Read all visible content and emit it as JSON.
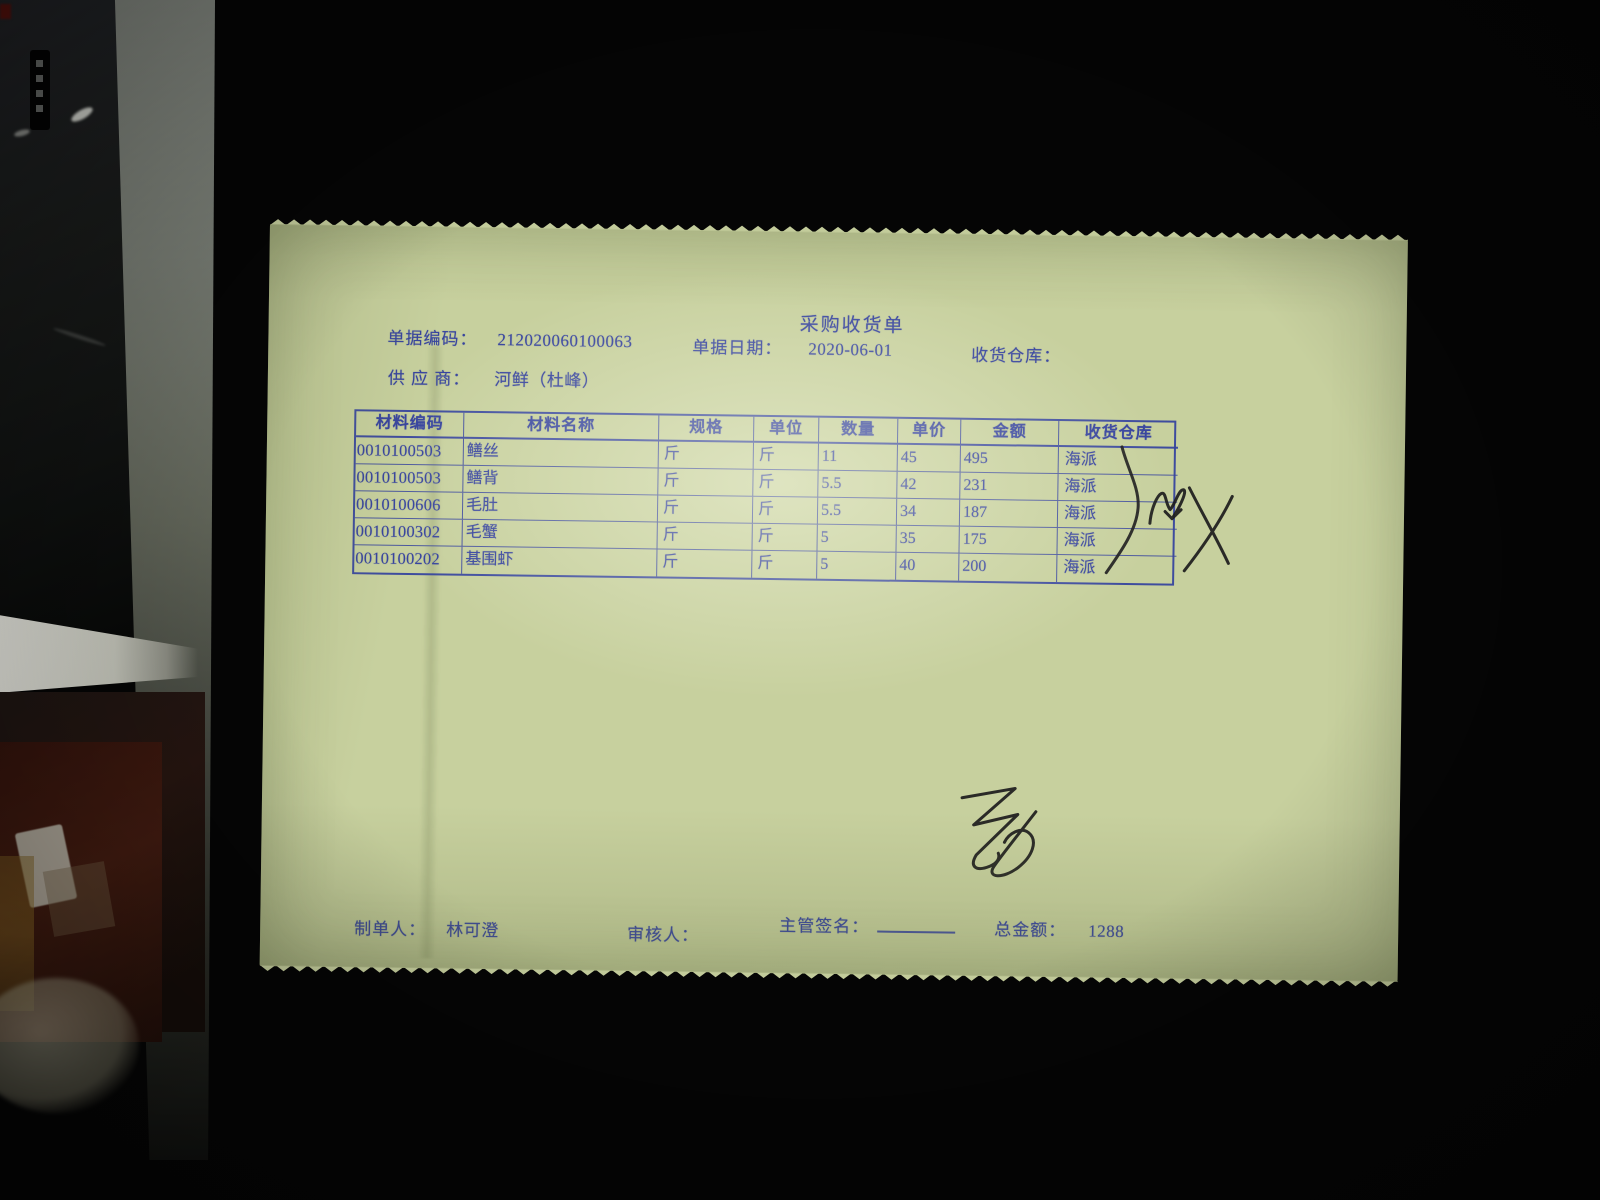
{
  "document": {
    "title": "采购收货单",
    "fields": {
      "doc_no_label": "单据编码：",
      "doc_no": "212020060100063",
      "date_label": "单据日期：",
      "date": "2020-06-01",
      "warehouse_label": "收货仓库：",
      "warehouse": "",
      "supplier_label": "供 应 商：",
      "supplier": "河鲜（杜峰）"
    },
    "table": {
      "headers": [
        "材料编码",
        "材料名称",
        "规格",
        "单位",
        "数量",
        "单价",
        "金额",
        "收货仓库"
      ],
      "rows": [
        [
          "0010100503",
          "鳝丝",
          "斤",
          "斤",
          "11",
          "45",
          "495",
          "海派"
        ],
        [
          "0010100503",
          "鳝背",
          "斤",
          "斤",
          "5.5",
          "42",
          "231",
          "海派"
        ],
        [
          "0010100606",
          "毛肚",
          "斤",
          "斤",
          "5.5",
          "34",
          "187",
          "海派"
        ],
        [
          "0010100302",
          "毛蟹",
          "斤",
          "斤",
          "5",
          "35",
          "175",
          "海派"
        ],
        [
          "0010100202",
          "基围虾",
          "斤",
          "斤",
          "5",
          "40",
          "200",
          "海派"
        ]
      ]
    },
    "footer": {
      "preparer_label": "制单人：",
      "preparer": "林可澄",
      "reviewer_label": "审核人：",
      "reviewer": "",
      "manager_sign_label": "主管签名：",
      "total_label": "总金额：",
      "total": "1288"
    },
    "handwriting": {
      "table_mark": "illegible pen brace and X scribble over 收货仓库 column",
      "signature": "illegible pen initials below table"
    },
    "colors": {
      "paper": "#c7d09e",
      "ink": "#37449e",
      "pen": "#1d1d1d",
      "background": "#050505"
    }
  }
}
